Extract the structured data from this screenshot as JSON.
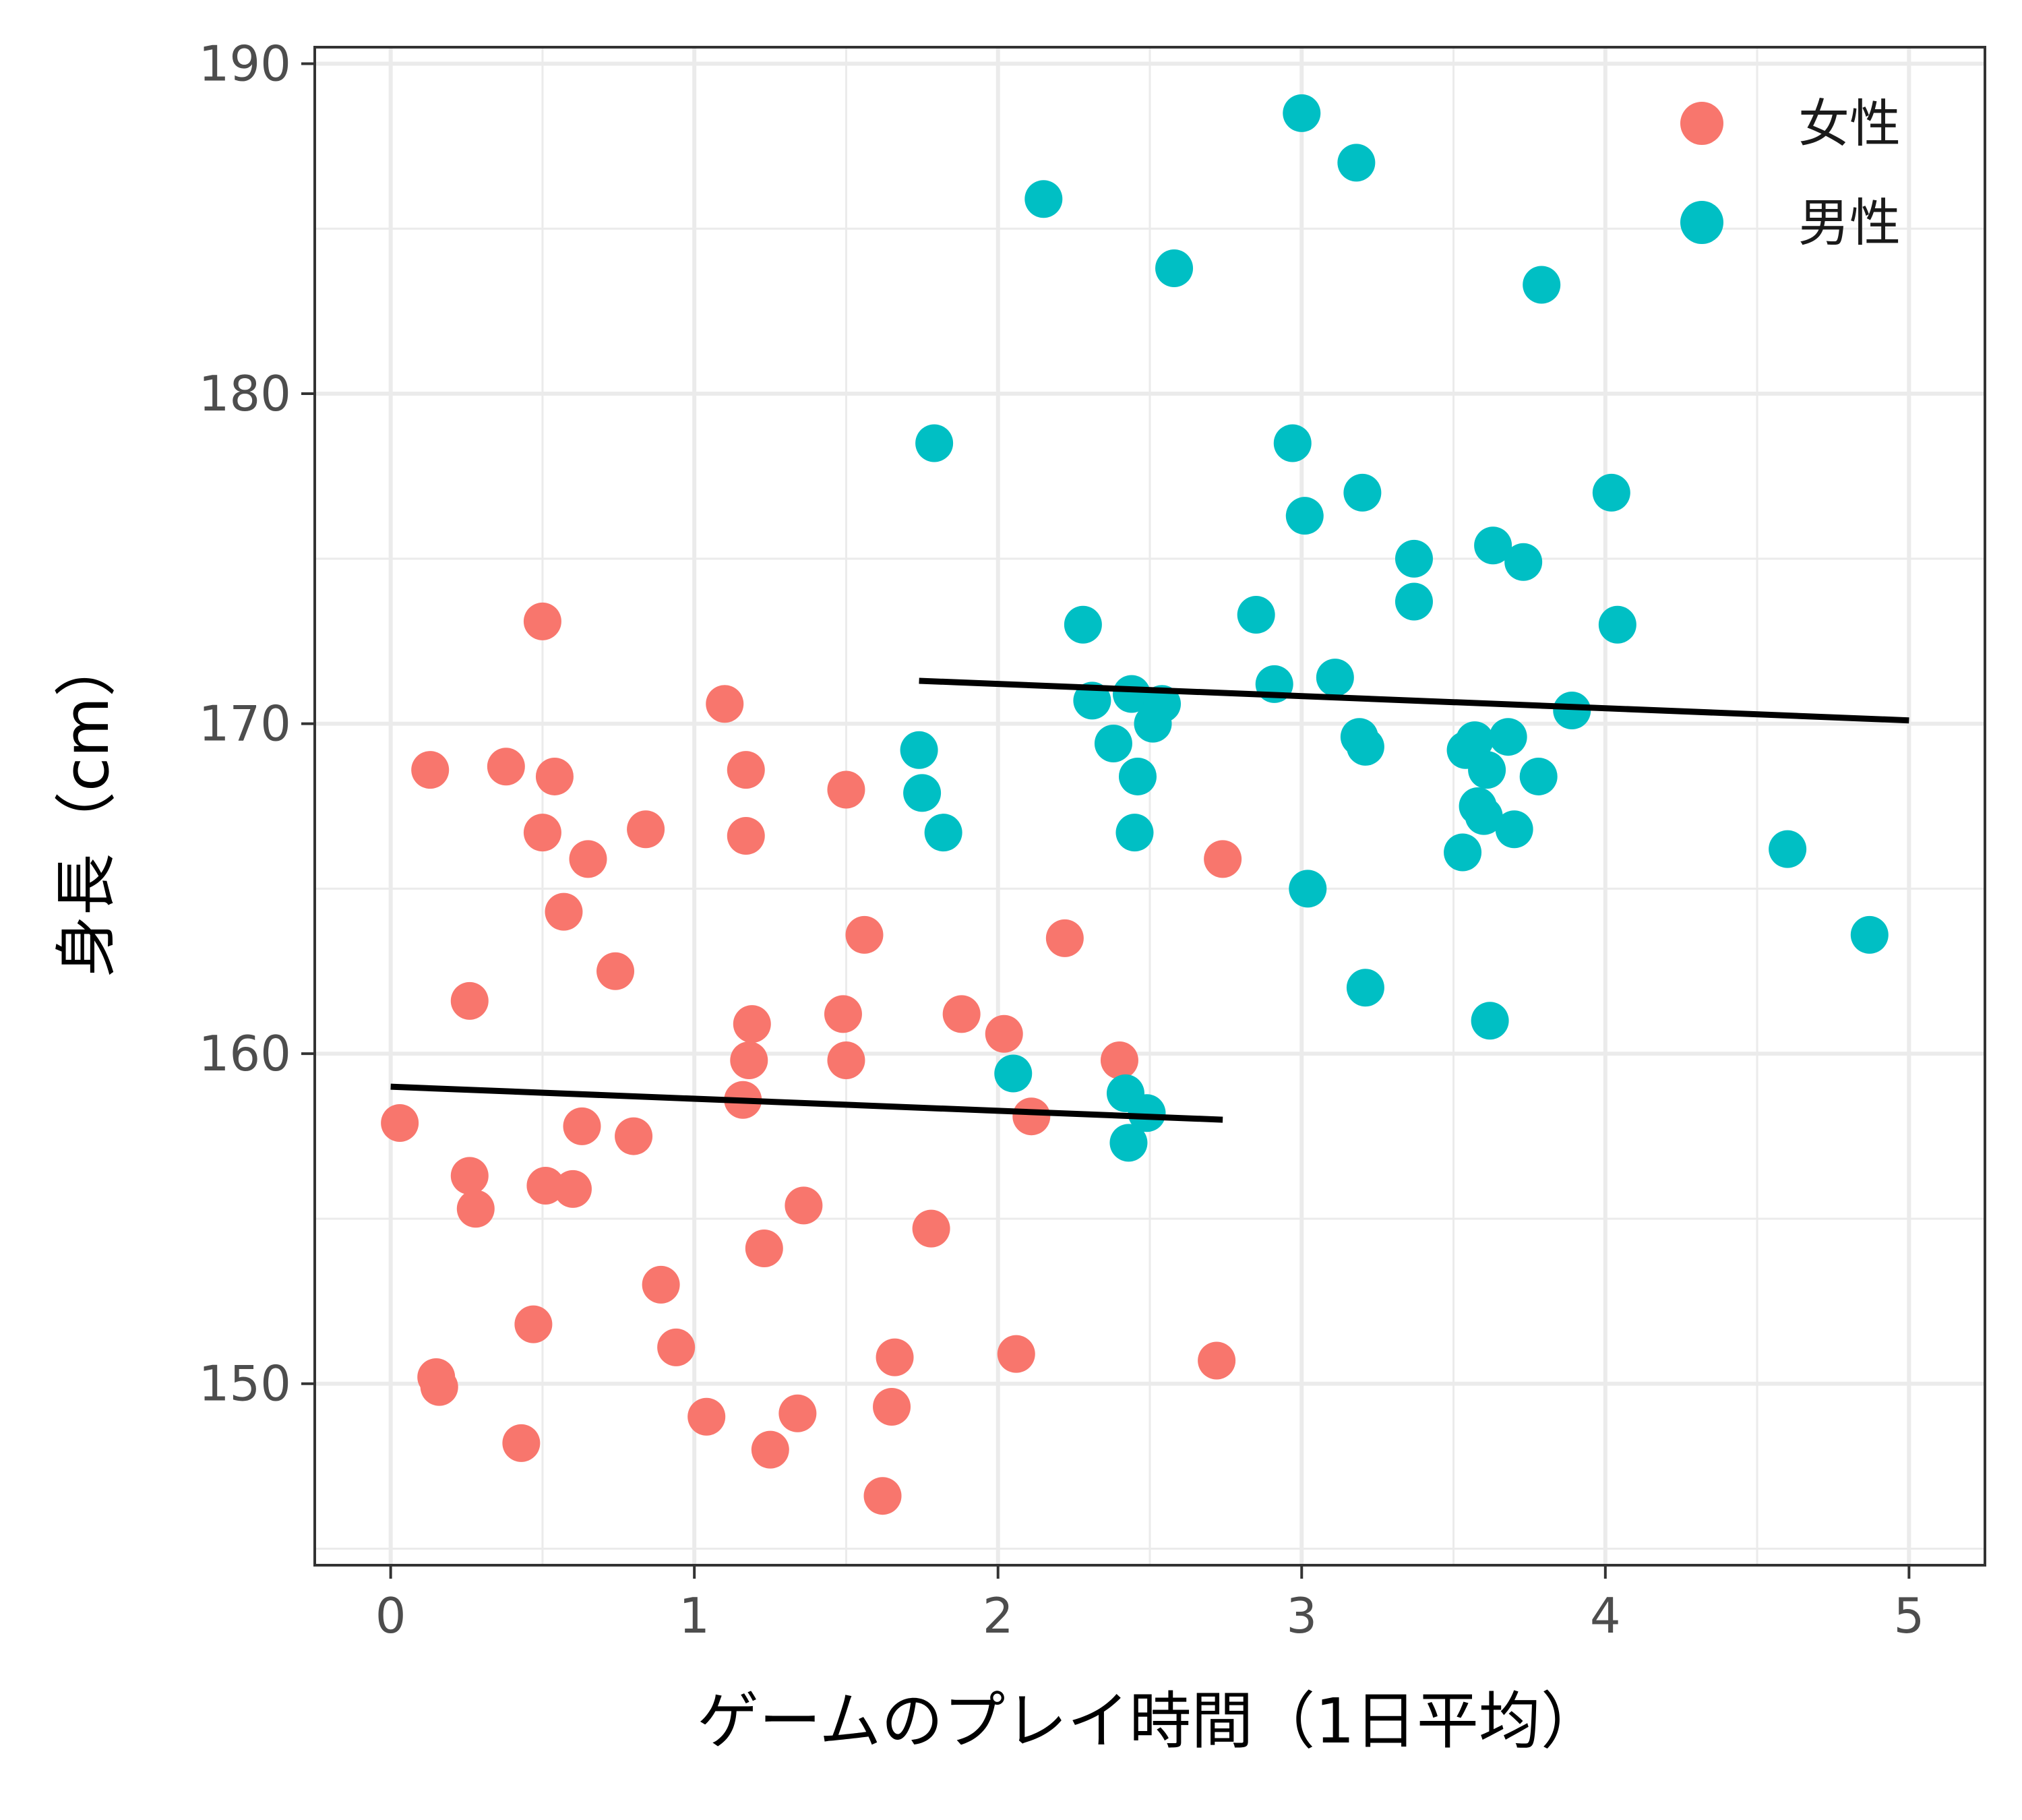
{
  "chart_data": {
    "type": "scatter",
    "xlabel": "ゲームのプレイ時間（1日平均）",
    "ylabel": "身長（cm）",
    "xlim": [
      -0.25,
      5.25
    ],
    "ylim": [
      144.5,
      190.5
    ],
    "x_ticks": [
      0,
      1,
      2,
      3,
      4,
      5
    ],
    "y_ticks": [
      150,
      160,
      170,
      180,
      190
    ],
    "grid": true,
    "legend_position": "top-right",
    "series": [
      {
        "name": "女性",
        "color": "#F8766D",
        "points": [
          [
            0.03,
            157.9
          ],
          [
            0.13,
            168.6
          ],
          [
            0.15,
            150.2
          ],
          [
            0.16,
            149.9
          ],
          [
            0.26,
            161.6
          ],
          [
            0.26,
            156.3
          ],
          [
            0.28,
            155.3
          ],
          [
            0.38,
            168.7
          ],
          [
            0.43,
            148.2
          ],
          [
            0.47,
            151.8
          ],
          [
            0.5,
            173.1
          ],
          [
            0.5,
            166.7
          ],
          [
            0.51,
            156.0
          ],
          [
            0.54,
            168.4
          ],
          [
            0.57,
            164.3
          ],
          [
            0.6,
            155.9
          ],
          [
            0.63,
            157.8
          ],
          [
            0.65,
            165.9
          ],
          [
            0.74,
            162.5
          ],
          [
            0.8,
            157.5
          ],
          [
            0.84,
            166.8
          ],
          [
            0.89,
            153.0
          ],
          [
            0.94,
            151.1
          ],
          [
            1.04,
            149.0
          ],
          [
            1.1,
            170.6
          ],
          [
            1.16,
            158.6
          ],
          [
            1.17,
            168.6
          ],
          [
            1.17,
            166.6
          ],
          [
            1.18,
            159.8
          ],
          [
            1.19,
            160.9
          ],
          [
            1.23,
            154.1
          ],
          [
            1.25,
            148.0
          ],
          [
            1.34,
            149.1
          ],
          [
            1.36,
            155.4
          ],
          [
            1.49,
            161.2
          ],
          [
            1.5,
            168.0
          ],
          [
            1.5,
            159.8
          ],
          [
            1.56,
            163.6
          ],
          [
            1.62,
            146.6
          ],
          [
            1.65,
            149.3
          ],
          [
            1.66,
            150.8
          ],
          [
            1.78,
            154.7
          ],
          [
            1.88,
            161.2
          ],
          [
            2.02,
            160.6
          ],
          [
            2.06,
            150.9
          ],
          [
            2.11,
            158.1
          ],
          [
            2.22,
            163.5
          ],
          [
            2.4,
            159.8
          ],
          [
            2.72,
            150.7
          ],
          [
            2.74,
            165.9
          ]
        ]
      },
      {
        "name": "男性",
        "color": "#00BFC4",
        "points": [
          [
            1.74,
            169.2
          ],
          [
            1.75,
            167.9
          ],
          [
            1.79,
            178.5
          ],
          [
            1.82,
            166.7
          ],
          [
            2.05,
            159.4
          ],
          [
            2.15,
            185.9
          ],
          [
            2.28,
            173.0
          ],
          [
            2.31,
            170.7
          ],
          [
            2.38,
            169.4
          ],
          [
            2.42,
            158.8
          ],
          [
            2.43,
            157.3
          ],
          [
            2.44,
            170.9
          ],
          [
            2.45,
            166.7
          ],
          [
            2.46,
            168.4
          ],
          [
            2.49,
            158.2
          ],
          [
            2.51,
            170.0
          ],
          [
            2.54,
            170.6
          ],
          [
            2.58,
            183.8
          ],
          [
            2.85,
            173.3
          ],
          [
            2.91,
            171.2
          ],
          [
            2.97,
            178.5
          ],
          [
            3.0,
            188.5
          ],
          [
            3.01,
            176.3
          ],
          [
            3.02,
            165.0
          ],
          [
            3.11,
            171.4
          ],
          [
            3.18,
            187.0
          ],
          [
            3.19,
            169.6
          ],
          [
            3.2,
            177.0
          ],
          [
            3.21,
            162.0
          ],
          [
            3.21,
            169.3
          ],
          [
            3.37,
            175.0
          ],
          [
            3.37,
            173.7
          ],
          [
            3.53,
            166.1
          ],
          [
            3.54,
            169.2
          ],
          [
            3.57,
            169.5
          ],
          [
            3.58,
            167.5
          ],
          [
            3.6,
            167.2
          ],
          [
            3.61,
            168.6
          ],
          [
            3.62,
            161.0
          ],
          [
            3.63,
            175.4
          ],
          [
            3.68,
            169.6
          ],
          [
            3.7,
            166.8
          ],
          [
            3.73,
            174.9
          ],
          [
            3.78,
            168.4
          ],
          [
            3.79,
            183.3
          ],
          [
            3.89,
            170.4
          ],
          [
            4.02,
            177.0
          ],
          [
            4.04,
            173.0
          ],
          [
            4.6,
            166.2
          ],
          [
            4.87,
            163.6
          ]
        ]
      }
    ],
    "fit_lines": [
      {
        "series": "女性",
        "x": [
          0.0,
          2.74
        ],
        "y": [
          159.0,
          158.0
        ],
        "color": "#000000"
      },
      {
        "series": "男性",
        "x": [
          1.74,
          5.0
        ],
        "y": [
          171.3,
          170.1
        ],
        "color": "#000000"
      }
    ]
  }
}
